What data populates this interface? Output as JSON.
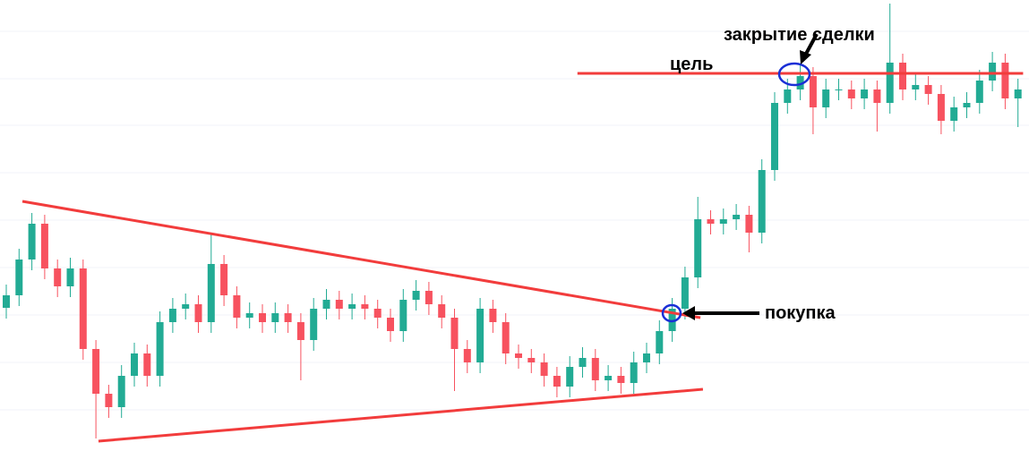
{
  "chart_data": {
    "type": "candlestick",
    "open": [
      160,
      174,
      214,
      254,
      204,
      184,
      204,
      114,
      64,
      49,
      84,
      109,
      84,
      144,
      159,
      164,
      144,
      209,
      174,
      149,
      154,
      144,
      154,
      144,
      124,
      159,
      169,
      159,
      164,
      159,
      149,
      134,
      169,
      179,
      164,
      149,
      114,
      99,
      159,
      144,
      109,
      104,
      99,
      84,
      72,
      94,
      104,
      79,
      84,
      76,
      99,
      109,
      134,
      159,
      194,
      259,
      254,
      259,
      264,
      244,
      314,
      389,
      404,
      419,
      384,
      404,
      404,
      394,
      404,
      389,
      434,
      404,
      409,
      399,
      369,
      384,
      389,
      414,
      434,
      394
    ],
    "high": [
      186,
      226,
      266,
      264,
      214,
      216,
      214,
      124,
      74,
      96,
      121,
      119,
      156,
      171,
      176,
      174,
      242,
      219,
      184,
      166,
      164,
      166,
      164,
      154,
      171,
      181,
      179,
      176,
      174,
      169,
      159,
      181,
      191,
      189,
      174,
      159,
      124,
      171,
      169,
      154,
      119,
      114,
      109,
      94,
      106,
      116,
      114,
      96,
      94,
      111,
      121,
      146,
      171,
      206,
      284,
      269,
      271,
      276,
      274,
      326,
      401,
      416,
      431,
      429,
      416,
      416,
      414,
      416,
      414,
      500,
      444,
      421,
      419,
      409,
      396,
      401,
      426,
      446,
      444,
      416
    ],
    "low": [
      148,
      162,
      202,
      192,
      172,
      172,
      102,
      14,
      37,
      37,
      72,
      72,
      72,
      132,
      147,
      132,
      132,
      162,
      137,
      137,
      132,
      132,
      132,
      79,
      112,
      147,
      147,
      147,
      147,
      137,
      122,
      122,
      157,
      152,
      137,
      67,
      87,
      87,
      132,
      97,
      92,
      87,
      72,
      60,
      60,
      82,
      67,
      67,
      64,
      64,
      87,
      97,
      122,
      147,
      182,
      242,
      242,
      247,
      222,
      232,
      302,
      377,
      392,
      354,
      372,
      392,
      382,
      382,
      357,
      377,
      392,
      392,
      387,
      354,
      357,
      372,
      377,
      402,
      382,
      362
    ],
    "close": [
      174,
      214,
      254,
      204,
      184,
      204,
      114,
      64,
      49,
      84,
      109,
      84,
      144,
      159,
      164,
      144,
      209,
      174,
      149,
      154,
      144,
      154,
      144,
      124,
      159,
      169,
      159,
      164,
      159,
      149,
      134,
      169,
      179,
      164,
      149,
      114,
      99,
      159,
      144,
      109,
      104,
      99,
      84,
      72,
      94,
      104,
      79,
      84,
      76,
      99,
      109,
      134,
      159,
      194,
      259,
      254,
      259,
      264,
      244,
      314,
      389,
      404,
      419,
      384,
      404,
      404,
      394,
      404,
      389,
      434,
      404,
      409,
      399,
      369,
      384,
      389,
      414,
      434,
      394,
      404
    ],
    "up_color": "#22ab94",
    "down_color": "#f7525f",
    "ylim": [
      0,
      504
    ],
    "lines": [
      {
        "x": [
          1.26,
          54.2
        ],
        "y": [
          279,
          149
        ],
        "color": "#f23c3c"
      },
      {
        "x": [
          7.2,
          54.4
        ],
        "y": [
          11,
          69
        ],
        "color": "#f23c3c"
      },
      {
        "x": [
          44.6,
          79.4
        ],
        "y": [
          422,
          422
        ],
        "color": "#f23c3c"
      }
    ],
    "annotations": [
      "закрытие сделки",
      "цель",
      "покупка"
    ]
  }
}
